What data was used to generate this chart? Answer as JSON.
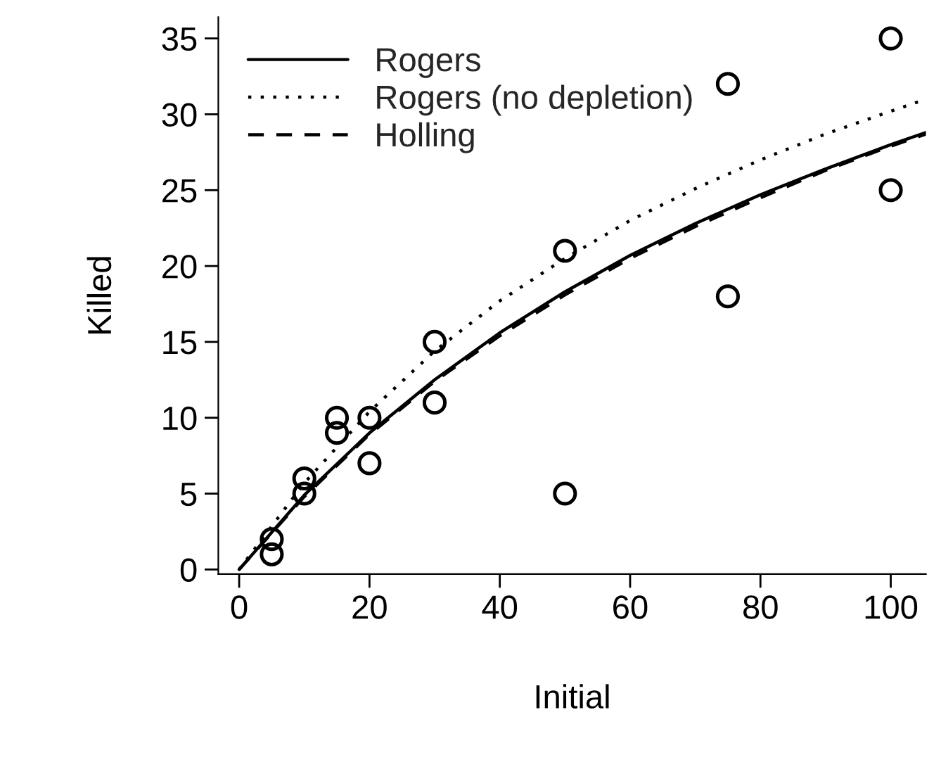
{
  "chart_data": {
    "type": "scatter",
    "xlabel": "Initial",
    "ylabel": "Killed",
    "xlim": [
      -3.2,
      105.4
    ],
    "ylim": [
      -0.3,
      36.4
    ],
    "xticks": [
      0,
      20,
      40,
      60,
      80,
      100
    ],
    "yticks": [
      0,
      5,
      10,
      15,
      20,
      25,
      30,
      35
    ],
    "grid": false,
    "legend": "top left",
    "series": [
      {
        "marker": "circle",
        "color": "#000000",
        "x": [
          5,
          5,
          10,
          10,
          15,
          15,
          20,
          20,
          30,
          30,
          50,
          50,
          75,
          75,
          100,
          100
        ],
        "values": [
          2,
          1,
          6,
          5,
          10,
          9,
          10,
          7,
          15,
          11,
          21,
          5,
          32,
          18,
          35,
          25
        ]
      },
      {
        "type": "line",
        "name": "Rogers",
        "color": "#000000",
        "line_style": "solid",
        "x": [
          0,
          10,
          20,
          30,
          40,
          50,
          60,
          70,
          80,
          90,
          100,
          105.4
        ],
        "values": [
          0,
          4.9,
          9.0,
          12.5,
          15.6,
          18.3,
          20.7,
          22.8,
          24.7,
          26.4,
          28.0,
          28.8
        ]
      },
      {
        "type": "line",
        "name": "Rogers (no depletion)",
        "color": "#000000",
        "line_style": "dotted",
        "x": [
          0,
          10,
          20,
          30,
          40,
          50,
          60,
          70,
          80,
          90,
          100,
          105.4
        ],
        "values": [
          0,
          5.7,
          10.4,
          14.4,
          17.7,
          20.5,
          23.0,
          25.1,
          27.0,
          28.7,
          30.2,
          31.0
        ]
      },
      {
        "type": "line",
        "name": "Holling",
        "color": "#000000",
        "line_style": "dashed",
        "x": [
          0,
          10,
          20,
          30,
          40,
          50,
          60,
          70,
          80,
          90,
          100,
          105.4
        ],
        "values": [
          0,
          4.8,
          8.9,
          12.4,
          15.4,
          18.1,
          20.5,
          22.6,
          24.5,
          26.3,
          27.9,
          28.7
        ]
      }
    ]
  }
}
